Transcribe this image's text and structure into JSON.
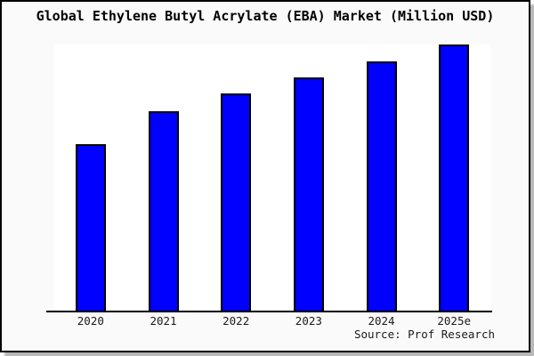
{
  "frame": {
    "background": "#fafafa",
    "border_color": "#000000"
  },
  "chart_data": {
    "type": "bar",
    "title": "Global Ethylene Butyl Acrylate (EBA) Market (Million USD)",
    "categories": [
      "2020",
      "2021",
      "2022",
      "2023",
      "2024",
      "2025e"
    ],
    "values": [
      62.7,
      75.2,
      81.6,
      87.7,
      93.7,
      100
    ],
    "values_scale": "relative index (no y-axis labels shown; 2025e bar = 100)",
    "xlabel": "",
    "ylabel": "",
    "ylim": [
      0,
      100
    ],
    "grid": false,
    "legend_position": "none",
    "bar_color": "#0000ff",
    "bar_border_color": "#000000",
    "plot_background": "#ffffff"
  },
  "source": {
    "label": "Source: Prof Research"
  }
}
